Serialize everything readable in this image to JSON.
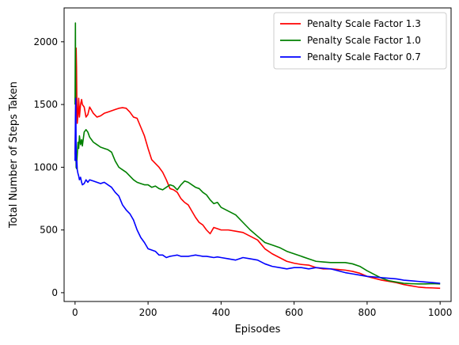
{
  "chart_data": {
    "type": "line",
    "title": "",
    "xlabel": "Episodes",
    "ylabel": "Total Number of Steps Taken",
    "xlim": [
      -30,
      1030
    ],
    "ylim": [
      -70,
      2270
    ],
    "xticks": [
      0,
      200,
      400,
      600,
      800,
      1000
    ],
    "yticks": [
      0,
      500,
      1000,
      1500,
      2000
    ],
    "grid": false,
    "legend_position": "top-right",
    "series": [
      {
        "name": "Penalty Scale Factor 1.3",
        "color": "#ff0000",
        "x": [
          0,
          1,
          2,
          3,
          4,
          5,
          6,
          8,
          10,
          12,
          15,
          18,
          20,
          25,
          30,
          35,
          40,
          50,
          60,
          70,
          80,
          90,
          100,
          110,
          120,
          130,
          140,
          150,
          160,
          170,
          180,
          190,
          200,
          210,
          220,
          230,
          240,
          250,
          260,
          270,
          280,
          290,
          300,
          310,
          320,
          330,
          340,
          350,
          360,
          370,
          380,
          390,
          400,
          420,
          440,
          460,
          480,
          500,
          520,
          540,
          560,
          580,
          600,
          620,
          640,
          660,
          680,
          700,
          720,
          740,
          760,
          780,
          800,
          820,
          840,
          860,
          880,
          900,
          920,
          940,
          960,
          980,
          1000
        ],
        "y": [
          1100,
          1280,
          1500,
          1950,
          1800,
          1500,
          1350,
          1420,
          1550,
          1400,
          1500,
          1540,
          1500,
          1480,
          1400,
          1420,
          1480,
          1430,
          1400,
          1410,
          1430,
          1440,
          1450,
          1460,
          1470,
          1475,
          1470,
          1440,
          1400,
          1390,
          1320,
          1250,
          1150,
          1060,
          1030,
          1000,
          960,
          900,
          830,
          820,
          800,
          750,
          720,
          700,
          650,
          600,
          560,
          540,
          500,
          470,
          520,
          510,
          500,
          500,
          490,
          480,
          450,
          420,
          350,
          310,
          280,
          250,
          235,
          225,
          220,
          200,
          190,
          190,
          185,
          180,
          170,
          155,
          130,
          115,
          100,
          90,
          80,
          65,
          55,
          45,
          40,
          38,
          35
        ]
      },
      {
        "name": "Penalty Scale Factor 1.0",
        "color": "#008000",
        "x": [
          0,
          1,
          2,
          3,
          4,
          5,
          6,
          8,
          10,
          12,
          15,
          18,
          20,
          25,
          30,
          35,
          40,
          50,
          60,
          70,
          80,
          90,
          100,
          110,
          120,
          130,
          140,
          150,
          160,
          170,
          180,
          190,
          200,
          210,
          220,
          230,
          240,
          250,
          260,
          270,
          280,
          290,
          300,
          310,
          320,
          330,
          340,
          350,
          360,
          370,
          380,
          390,
          400,
          420,
          440,
          460,
          480,
          500,
          520,
          540,
          560,
          580,
          600,
          620,
          640,
          660,
          680,
          700,
          720,
          740,
          760,
          780,
          800,
          820,
          840,
          860,
          880,
          900,
          920,
          940,
          960,
          980,
          1000
        ],
        "y": [
          1500,
          2150,
          1200,
          1000,
          990,
          1050,
          1100,
          1200,
          1150,
          1250,
          1180,
          1220,
          1170,
          1280,
          1300,
          1280,
          1240,
          1200,
          1180,
          1160,
          1150,
          1140,
          1120,
          1050,
          1000,
          980,
          960,
          930,
          900,
          880,
          870,
          860,
          860,
          840,
          850,
          830,
          820,
          840,
          860,
          850,
          820,
          860,
          890,
          880,
          860,
          840,
          830,
          800,
          780,
          740,
          710,
          720,
          680,
          650,
          620,
          560,
          500,
          450,
          400,
          380,
          360,
          330,
          310,
          290,
          270,
          250,
          245,
          240,
          240,
          240,
          230,
          210,
          175,
          145,
          115,
          95,
          85,
          75,
          72,
          70,
          70,
          72,
          70
        ]
      },
      {
        "name": "Penalty Scale Factor 0.7",
        "color": "#0000ff",
        "x": [
          0,
          1,
          2,
          3,
          4,
          5,
          6,
          8,
          10,
          12,
          15,
          18,
          20,
          25,
          30,
          35,
          40,
          50,
          60,
          70,
          80,
          90,
          100,
          110,
          120,
          130,
          140,
          150,
          160,
          170,
          180,
          190,
          200,
          210,
          220,
          230,
          240,
          250,
          260,
          270,
          280,
          290,
          300,
          310,
          320,
          330,
          340,
          350,
          360,
          370,
          380,
          390,
          400,
          420,
          440,
          460,
          480,
          500,
          520,
          540,
          560,
          580,
          600,
          620,
          640,
          660,
          680,
          700,
          720,
          740,
          760,
          780,
          800,
          820,
          840,
          860,
          880,
          900,
          920,
          940,
          960,
          980,
          1000
        ],
        "y": [
          1050,
          1400,
          1550,
          1100,
          1000,
          1050,
          980,
          950,
          930,
          900,
          920,
          880,
          860,
          870,
          900,
          880,
          900,
          890,
          880,
          870,
          880,
          860,
          840,
          800,
          770,
          700,
          660,
          630,
          580,
          500,
          440,
          400,
          350,
          340,
          330,
          300,
          300,
          280,
          290,
          295,
          300,
          290,
          290,
          290,
          295,
          300,
          295,
          290,
          290,
          285,
          280,
          285,
          280,
          270,
          260,
          280,
          270,
          260,
          230,
          210,
          200,
          190,
          200,
          200,
          190,
          200,
          195,
          190,
          175,
          160,
          150,
          140,
          130,
          125,
          120,
          115,
          110,
          100,
          95,
          90,
          85,
          80,
          75
        ]
      }
    ]
  }
}
